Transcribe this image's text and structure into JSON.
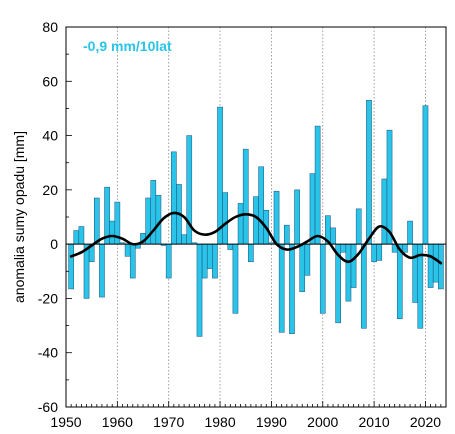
{
  "chart_data": {
    "type": "bar",
    "title": "",
    "xlabel": "",
    "ylabel": "anomalia sumy opadu [mm]",
    "annotation": "-0,9 mm/10lat",
    "xlim": [
      1950,
      2024
    ],
    "ylim": [
      -60,
      80
    ],
    "x_ticks": [
      "1950",
      "1960",
      "1970",
      "1980",
      "1990",
      "2000",
      "2010",
      "2020"
    ],
    "y_ticks": [
      "80",
      "60",
      "40",
      "20",
      "0",
      "-20",
      "-40",
      "-60"
    ],
    "grid": "vertical dotted at decades",
    "colors": {
      "bar": "#29c4e8",
      "bar_edge": "#1e4e7a",
      "trend": "#000000",
      "annotation": "#29c4e8"
    },
    "series": [
      {
        "type": "bar",
        "years": [
          1951,
          1952,
          1953,
          1954,
          1955,
          1956,
          1957,
          1958,
          1959,
          1960,
          1961,
          1962,
          1963,
          1964,
          1965,
          1966,
          1967,
          1968,
          1969,
          1970,
          1971,
          1972,
          1973,
          1974,
          1975,
          1976,
          1977,
          1978,
          1979,
          1980,
          1981,
          1982,
          1983,
          1984,
          1985,
          1986,
          1987,
          1988,
          1989,
          1990,
          1991,
          1992,
          1993,
          1994,
          1995,
          1996,
          1997,
          1998,
          1999,
          2000,
          2001,
          2002,
          2003,
          2004,
          2005,
          2006,
          2007,
          2008,
          2009,
          2010,
          2011,
          2012,
          2013,
          2014,
          2015,
          2016,
          2017,
          2018,
          2019,
          2020,
          2021,
          2022,
          2023
        ],
        "values": [
          -16.5,
          5,
          6.5,
          -20,
          -6.5,
          17,
          -19.5,
          21,
          8.5,
          15.5,
          0.5,
          -4.5,
          -12.5,
          -1.5,
          4,
          17,
          23.5,
          18,
          -0.5,
          -12.5,
          34,
          22,
          3.5,
          40,
          0.5,
          -34,
          -12.5,
          -9,
          -12.5,
          50.5,
          19,
          -2,
          -25.5,
          15,
          35,
          -6.5,
          17.5,
          28.5,
          12.5,
          0.5,
          19.5,
          -32.5,
          7,
          -33,
          20,
          -17.5,
          -11.5,
          26,
          43.5,
          -25.5,
          10.5,
          6,
          -29,
          -3,
          -21,
          -16,
          13,
          -31,
          53,
          -6.5,
          -6,
          24,
          42,
          -3,
          -27.5,
          -3,
          8.5,
          -21.5,
          -31,
          51,
          -16,
          -14,
          -16.5
        ]
      },
      {
        "type": "line",
        "name": "",
        "x": [
          1951,
          1953,
          1955,
          1957,
          1959,
          1961,
          1963,
          1965,
          1967,
          1969,
          1971,
          1973,
          1975,
          1977,
          1979,
          1981,
          1983,
          1985,
          1987,
          1989,
          1991,
          1993,
          1995,
          1997,
          1999,
          2001,
          2003,
          2005,
          2007,
          2009,
          2011,
          2013,
          2015,
          2017,
          2019,
          2021,
          2023
        ],
        "y": [
          -4.5,
          -3,
          -0.5,
          2,
          3,
          2,
          0,
          1,
          5,
          9.5,
          11.5,
          10,
          5,
          3.5,
          4.5,
          7.5,
          10,
          11,
          10,
          6,
          0,
          -2,
          -1,
          1,
          3,
          1,
          -4,
          -6.5,
          -3.5,
          2,
          6.5,
          4.5,
          -2,
          -5,
          -4,
          -4.5,
          -7
        ]
      }
    ]
  }
}
